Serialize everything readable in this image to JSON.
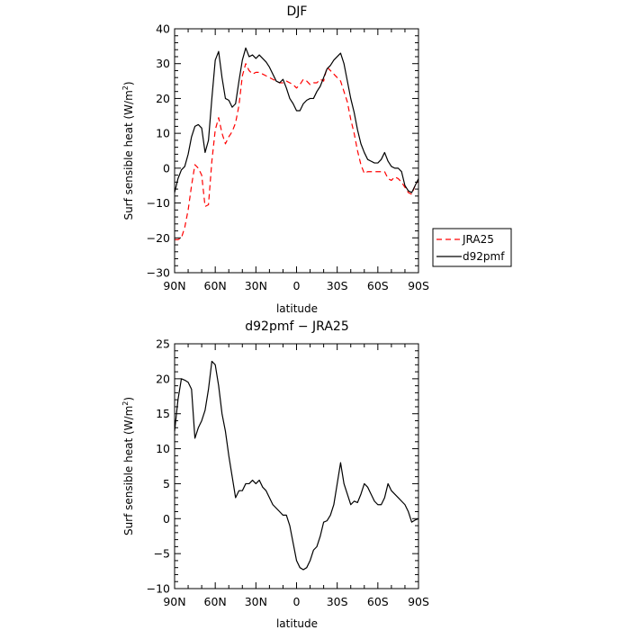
{
  "chart_data": [
    {
      "type": "line",
      "title": "DJF",
      "xlabel": "latitude",
      "ylabel": "Surf sensible heat (W/m²)",
      "ylabel_parts": {
        "main": "Surf sensible heat (W/m",
        "sup": "2",
        "close": ")"
      },
      "xlim": [
        90,
        -90
      ],
      "ylim": [
        -30,
        40
      ],
      "xticks": [
        90,
        60,
        30,
        0,
        -30,
        -60,
        -90
      ],
      "xticklabels": [
        "90N",
        "60N",
        "30N",
        "0",
        "30S",
        "60S",
        "90S"
      ],
      "yticks": [
        -30,
        -20,
        -10,
        0,
        10,
        20,
        30,
        40
      ],
      "yticklabels": [
        "−30",
        "−20",
        "−10",
        "0",
        "10",
        "20",
        "30",
        "40"
      ],
      "legend": {
        "placement": "outside-right",
        "entries": [
          "JRA25",
          "d92pmf"
        ]
      },
      "series": [
        {
          "name": "JRA25",
          "color": "#ff0000",
          "style": "dashed",
          "x": [
            90,
            87.5,
            85,
            82.5,
            80,
            77.5,
            75,
            72.5,
            70,
            67.5,
            65,
            62.5,
            60,
            57.5,
            55,
            52.5,
            50,
            47.5,
            45,
            42.5,
            40,
            37.5,
            35,
            32.5,
            30,
            27.5,
            25,
            22.5,
            20,
            17.5,
            15,
            12.5,
            10,
            7.5,
            5,
            2.5,
            0,
            -2.5,
            -5,
            -7.5,
            -10,
            -12.5,
            -15,
            -17.5,
            -20,
            -22.5,
            -25,
            -27.5,
            -30,
            -32.5,
            -35,
            -37.5,
            -40,
            -42.5,
            -45,
            -47.5,
            -50,
            -52.5,
            -55,
            -57.5,
            -60,
            -62.5,
            -65,
            -67.5,
            -70,
            -72.5,
            -75,
            -77.5,
            -80,
            -82.5,
            -85,
            -87.5,
            -90
          ],
          "y": [
            -20.5,
            -20.5,
            -20,
            -17,
            -12,
            -5,
            1,
            0,
            -2,
            -11,
            -10.5,
            2,
            11,
            14.5,
            10,
            7,
            9,
            10.5,
            13,
            18,
            26.5,
            30,
            28,
            27,
            27.5,
            27.5,
            27,
            26.5,
            26,
            25.5,
            25,
            24.5,
            24.5,
            25,
            24.5,
            24,
            23,
            24,
            25.5,
            25,
            24,
            24.5,
            24.5,
            25.5,
            25,
            29,
            28,
            27,
            26,
            25,
            22,
            19,
            14,
            10,
            5,
            1,
            -1.5,
            -1,
            -1,
            -1,
            -1,
            -1,
            -1,
            -3,
            -3.5,
            -2.5,
            -3,
            -4,
            -5.5,
            -7,
            -7.5,
            -5,
            -3.5
          ]
        },
        {
          "name": "d92pmf",
          "color": "#000000",
          "style": "solid",
          "x": [
            90,
            87.5,
            85,
            82.5,
            80,
            77.5,
            75,
            72.5,
            70,
            67.5,
            65,
            62.5,
            60,
            57.5,
            55,
            52.5,
            50,
            47.5,
            45,
            42.5,
            40,
            37.5,
            35,
            32.5,
            30,
            27.5,
            25,
            22.5,
            20,
            17.5,
            15,
            12.5,
            10,
            7.5,
            5,
            2.5,
            0,
            -2.5,
            -5,
            -7.5,
            -10,
            -12.5,
            -15,
            -17.5,
            -20,
            -22.5,
            -25,
            -27.5,
            -30,
            -32.5,
            -35,
            -37.5,
            -40,
            -42.5,
            -45,
            -47.5,
            -50,
            -52.5,
            -55,
            -57.5,
            -60,
            -62.5,
            -65,
            -67.5,
            -70,
            -72.5,
            -75,
            -77.5,
            -80,
            -82.5,
            -85,
            -87.5,
            -90
          ],
          "y": [
            -7,
            -3,
            -0.5,
            0.5,
            4,
            9,
            12,
            12.5,
            11.5,
            4.5,
            8,
            20,
            31,
            33.5,
            26,
            20,
            19.5,
            17.5,
            18.5,
            25,
            31,
            34.5,
            32,
            32.5,
            31.5,
            32.5,
            31.5,
            30.5,
            29,
            27,
            25,
            24.5,
            25.5,
            23,
            20,
            18.5,
            16.5,
            16.5,
            18.5,
            19.5,
            20,
            20,
            22,
            23.5,
            26,
            28.5,
            29.5,
            31,
            32,
            33,
            30,
            25,
            20,
            16,
            11,
            7,
            4.5,
            2.5,
            2,
            1.5,
            1.5,
            2.5,
            4.5,
            2,
            0.5,
            0,
            0,
            -1,
            -5,
            -6.5,
            -7,
            -5,
            -3
          ]
        }
      ]
    },
    {
      "type": "line",
      "title": "d92pmf − JRA25",
      "xlabel": "latitude",
      "ylabel": "Surf sensible heat (W/m²)",
      "ylabel_parts": {
        "main": "Surf sensible heat (W/m",
        "sup": "2",
        "close": ")"
      },
      "xlim": [
        90,
        -90
      ],
      "ylim": [
        -10,
        25
      ],
      "xticks": [
        90,
        60,
        30,
        0,
        -30,
        -60,
        -90
      ],
      "xticklabels": [
        "90N",
        "60N",
        "30N",
        "0",
        "30S",
        "60S",
        "90S"
      ],
      "yticks": [
        -10,
        -5,
        0,
        5,
        10,
        15,
        20,
        25
      ],
      "yticklabels": [
        "−10",
        "−5",
        "0",
        "5",
        "10",
        "15",
        "20",
        "25"
      ],
      "series": [
        {
          "color": "#000000",
          "style": "solid",
          "x": [
            90,
            87.5,
            85,
            82.5,
            80,
            77.5,
            75,
            72.5,
            70,
            67.5,
            65,
            62.5,
            60,
            57.5,
            55,
            52.5,
            50,
            47.5,
            45,
            42.5,
            40,
            37.5,
            35,
            32.5,
            30,
            27.5,
            25,
            22.5,
            20,
            17.5,
            15,
            12.5,
            10,
            7.5,
            5,
            2.5,
            0,
            -2.5,
            -5,
            -7.5,
            -10,
            -12.5,
            -15,
            -17.5,
            -20,
            -22.5,
            -25,
            -27.5,
            -30,
            -32.5,
            -35,
            -37.5,
            -40,
            -42.5,
            -45,
            -47.5,
            -50,
            -52.5,
            -55,
            -57.5,
            -60,
            -62.5,
            -65,
            -67.5,
            -70,
            -72.5,
            -75,
            -77.5,
            -80,
            -82.5,
            -85,
            -87.5,
            -90
          ],
          "y": [
            12.5,
            17,
            20,
            19.8,
            19.5,
            18.5,
            11.5,
            13,
            14,
            15.5,
            18.5,
            22.5,
            22,
            19,
            15,
            12.5,
            9,
            6,
            3,
            4,
            4,
            5,
            5,
            5.5,
            5,
            5.5,
            4.5,
            4,
            3,
            2,
            1.5,
            1,
            0.5,
            0.5,
            -1,
            -3.5,
            -6,
            -7,
            -7.3,
            -7,
            -6,
            -4.5,
            -4,
            -2.5,
            -0.5,
            -0.3,
            0.5,
            2,
            5,
            8,
            5,
            3.5,
            2,
            2.5,
            2.3,
            3.5,
            5,
            4.5,
            3.5,
            2.5,
            2,
            2,
            3,
            5,
            4,
            3.5,
            3,
            2.5,
            2,
            1,
            -0.5,
            -0.2,
            0
          ]
        }
      ]
    }
  ]
}
